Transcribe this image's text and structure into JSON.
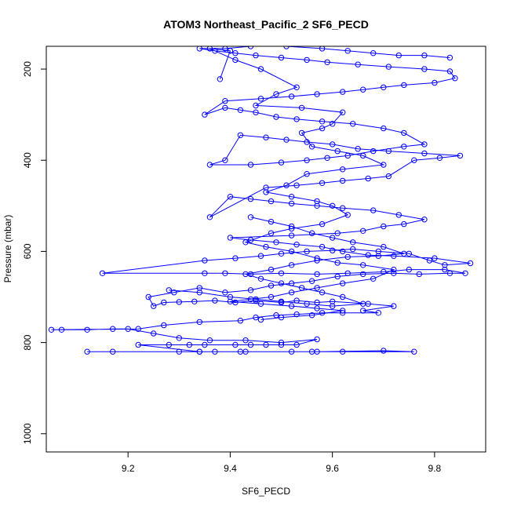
{
  "chart_data": {
    "type": "scatter",
    "title": "ATOM3 Northeast_Pacific_2 SF6_PECD",
    "xlabel": "SF6_PECD",
    "ylabel": "Pressure (mbar)",
    "xlim": [
      9.04,
      9.9
    ],
    "ylim": [
      1040,
      150
    ],
    "y_reversed": true,
    "x_ticks": [
      9.2,
      9.4,
      9.6,
      9.8
    ],
    "x_tick_labels": [
      "9.2",
      "9.4",
      "9.6",
      "9.8"
    ],
    "y_ticks": [
      200,
      400,
      600,
      800,
      1000
    ],
    "y_tick_labels": [
      "200",
      "400",
      "600",
      "800",
      "1000"
    ],
    "grid": false,
    "legend": "none",
    "series_color": "#0000ff",
    "markers": "open-circle",
    "connected": true,
    "series": [
      {
        "points": [
          [
            9.12,
            820
          ],
          [
            9.17,
            820
          ],
          [
            9.3,
            820
          ],
          [
            9.34,
            820
          ],
          [
            9.37,
            820
          ],
          [
            9.42,
            820
          ],
          [
            9.52,
            820
          ],
          [
            9.56,
            820
          ],
          [
            9.62,
            820
          ],
          [
            9.76,
            820
          ],
          [
            9.7,
            818
          ],
          [
            9.57,
            820
          ],
          [
            9.43,
            820
          ],
          [
            9.34,
            820
          ],
          [
            9.22,
            805
          ],
          [
            9.28,
            805
          ],
          [
            9.32,
            805
          ],
          [
            9.35,
            805
          ],
          [
            9.41,
            805
          ],
          [
            9.44,
            805
          ],
          [
            9.47,
            805
          ],
          [
            9.5,
            805
          ],
          [
            9.53,
            805
          ],
          [
            9.57,
            793
          ],
          [
            9.5,
            800
          ],
          [
            9.43,
            795
          ],
          [
            9.36,
            795
          ],
          [
            9.3,
            790
          ],
          [
            9.25,
            780
          ],
          [
            9.2,
            770
          ],
          [
            9.17,
            770
          ],
          [
            9.12,
            772
          ],
          [
            9.07,
            772
          ],
          [
            9.05,
            772
          ],
          [
            9.22,
            770
          ],
          [
            9.27,
            762
          ],
          [
            9.34,
            755
          ],
          [
            9.42,
            752
          ],
          [
            9.45,
            745
          ],
          [
            9.49,
            740
          ],
          [
            9.53,
            738
          ],
          [
            9.58,
            735
          ],
          [
            9.62,
            735
          ],
          [
            9.69,
            735
          ],
          [
            9.66,
            730
          ],
          [
            9.72,
            720
          ],
          [
            9.67,
            715
          ],
          [
            9.6,
            710
          ],
          [
            9.57,
            712
          ],
          [
            9.53,
            708
          ],
          [
            9.5,
            712
          ],
          [
            9.45,
            708
          ],
          [
            9.41,
            712
          ],
          [
            9.37,
            708
          ],
          [
            9.33,
            710
          ],
          [
            9.3,
            711
          ],
          [
            9.27,
            712
          ],
          [
            9.25,
            720
          ],
          [
            9.24,
            700
          ],
          [
            9.29,
            690
          ],
          [
            9.34,
            680
          ],
          [
            9.39,
            690
          ],
          [
            9.44,
            685
          ],
          [
            9.48,
            675
          ],
          [
            9.52,
            670
          ],
          [
            9.56,
            665
          ],
          [
            9.61,
            655
          ],
          [
            9.66,
            650
          ],
          [
            9.72,
            648
          ],
          [
            9.77,
            650
          ],
          [
            9.83,
            648
          ],
          [
            9.86,
            648
          ],
          [
            9.82,
            640
          ],
          [
            9.75,
            640
          ],
          [
            9.7,
            645
          ],
          [
            9.63,
            648
          ],
          [
            9.57,
            650
          ],
          [
            9.5,
            648
          ],
          [
            9.44,
            650
          ],
          [
            9.39,
            648
          ],
          [
            9.35,
            648
          ],
          [
            9.15,
            648
          ],
          [
            9.35,
            620
          ],
          [
            9.41,
            615
          ],
          [
            9.46,
            610
          ],
          [
            9.5,
            605
          ],
          [
            9.55,
            600
          ],
          [
            9.6,
            598
          ],
          [
            9.64,
            595
          ],
          [
            9.69,
            600
          ],
          [
            9.75,
            605
          ],
          [
            9.79,
            620
          ],
          [
            9.82,
            630
          ],
          [
            9.87,
            626
          ],
          [
            9.8,
            615
          ],
          [
            9.72,
            610
          ],
          [
            9.67,
            608
          ],
          [
            9.62,
            600
          ],
          [
            9.58,
            590
          ],
          [
            9.53,
            585
          ],
          [
            9.49,
            580
          ],
          [
            9.44,
            575
          ],
          [
            9.4,
            570
          ],
          [
            9.52,
            565
          ],
          [
            9.61,
            560
          ],
          [
            9.66,
            555
          ],
          [
            9.7,
            545
          ],
          [
            9.74,
            540
          ],
          [
            9.78,
            530
          ],
          [
            9.73,
            520
          ],
          [
            9.68,
            510
          ],
          [
            9.62,
            505
          ],
          [
            9.57,
            500
          ],
          [
            9.52,
            495
          ],
          [
            9.48,
            490
          ],
          [
            9.44,
            485
          ],
          [
            9.4,
            480
          ],
          [
            9.36,
            525
          ],
          [
            9.47,
            460
          ],
          [
            9.53,
            455
          ],
          [
            9.58,
            450
          ],
          [
            9.62,
            445
          ],
          [
            9.67,
            440
          ],
          [
            9.71,
            435
          ],
          [
            9.76,
            400
          ],
          [
            9.81,
            395
          ],
          [
            9.85,
            390
          ],
          [
            9.78,
            385
          ],
          [
            9.71,
            380
          ],
          [
            9.65,
            375
          ],
          [
            9.6,
            365
          ],
          [
            9.55,
            360
          ],
          [
            9.51,
            355
          ],
          [
            9.47,
            350
          ],
          [
            9.42,
            345
          ],
          [
            9.39,
            400
          ],
          [
            9.36,
            410
          ],
          [
            9.44,
            410
          ],
          [
            9.5,
            405
          ],
          [
            9.55,
            400
          ],
          [
            9.59,
            395
          ],
          [
            9.63,
            390
          ],
          [
            9.68,
            380
          ],
          [
            9.74,
            370
          ],
          [
            9.78,
            365
          ],
          [
            9.74,
            340
          ],
          [
            9.7,
            330
          ],
          [
            9.64,
            320
          ],
          [
            9.58,
            315
          ],
          [
            9.53,
            310
          ],
          [
            9.49,
            305
          ],
          [
            9.45,
            295
          ],
          [
            9.42,
            290
          ],
          [
            9.39,
            285
          ],
          [
            9.35,
            300
          ],
          [
            9.39,
            270
          ],
          [
            9.46,
            265
          ],
          [
            9.52,
            260
          ],
          [
            9.57,
            255
          ],
          [
            9.62,
            250
          ],
          [
            9.66,
            245
          ],
          [
            9.7,
            240
          ],
          [
            9.74,
            235
          ],
          [
            9.8,
            230
          ],
          [
            9.84,
            220
          ],
          [
            9.83,
            205
          ],
          [
            9.78,
            200
          ],
          [
            9.71,
            195
          ],
          [
            9.65,
            190
          ],
          [
            9.59,
            185
          ],
          [
            9.55,
            180
          ],
          [
            9.5,
            175
          ],
          [
            9.45,
            170
          ],
          [
            9.41,
            165
          ],
          [
            9.37,
            160
          ],
          [
            9.34,
            155
          ],
          [
            9.39,
            155
          ],
          [
            9.44,
            150
          ],
          [
            9.51,
            150
          ],
          [
            9.58,
            155
          ],
          [
            9.63,
            160
          ],
          [
            9.68,
            165
          ],
          [
            9.73,
            170
          ],
          [
            9.78,
            170
          ],
          [
            9.83,
            175
          ]
        ]
      },
      {
        "points": [
          [
            9.38,
            222
          ],
          [
            9.4,
            160
          ],
          [
            9.36,
            155
          ],
          [
            9.41,
            180
          ],
          [
            9.46,
            200
          ],
          [
            9.53,
            240
          ],
          [
            9.49,
            255
          ],
          [
            9.45,
            280
          ],
          [
            9.54,
            285
          ],
          [
            9.62,
            295
          ],
          [
            9.6,
            320
          ],
          [
            9.58,
            330
          ],
          [
            9.54,
            340
          ],
          [
            9.56,
            370
          ],
          [
            9.61,
            380
          ],
          [
            9.66,
            390
          ],
          [
            9.7,
            410
          ],
          [
            9.62,
            420
          ],
          [
            9.55,
            430
          ],
          [
            9.51,
            455
          ],
          [
            9.47,
            470
          ],
          [
            9.52,
            480
          ],
          [
            9.57,
            490
          ],
          [
            9.6,
            500
          ],
          [
            9.63,
            520
          ],
          [
            9.58,
            540
          ],
          [
            9.52,
            550
          ],
          [
            9.48,
            560
          ],
          [
            9.43,
            580
          ],
          [
            9.47,
            590
          ],
          [
            9.52,
            600
          ],
          [
            9.57,
            615
          ],
          [
            9.61,
            625
          ],
          [
            9.66,
            630
          ],
          [
            9.72,
            640
          ],
          [
            9.68,
            660
          ],
          [
            9.62,
            670
          ],
          [
            9.57,
            680
          ],
          [
            9.52,
            690
          ],
          [
            9.48,
            700
          ],
          [
            9.44,
            705
          ],
          [
            9.4,
            710
          ],
          [
            9.46,
            715
          ],
          [
            9.52,
            720
          ],
          [
            9.57,
            725
          ],
          [
            9.62,
            730
          ],
          [
            9.56,
            740
          ],
          [
            9.5,
            745
          ],
          [
            9.46,
            750
          ]
        ]
      },
      {
        "points": [
          [
            9.28,
            685
          ],
          [
            9.34,
            690
          ],
          [
            9.4,
            700
          ],
          [
            9.45,
            705
          ],
          [
            9.5,
            710
          ],
          [
            9.55,
            715
          ],
          [
            9.6,
            720
          ],
          [
            9.66,
            715
          ],
          [
            9.62,
            700
          ],
          [
            9.58,
            690
          ],
          [
            9.54,
            680
          ],
          [
            9.5,
            670
          ],
          [
            9.46,
            660
          ],
          [
            9.43,
            650
          ],
          [
            9.48,
            640
          ],
          [
            9.52,
            630
          ],
          [
            9.57,
            620
          ],
          [
            9.63,
            612
          ],
          [
            9.69,
            610
          ],
          [
            9.74,
            605
          ],
          [
            9.7,
            590
          ],
          [
            9.64,
            580
          ],
          [
            9.6,
            570
          ],
          [
            9.56,
            560
          ],
          [
            9.52,
            545
          ],
          [
            9.48,
            535
          ],
          [
            9.44,
            525
          ]
        ]
      }
    ]
  }
}
